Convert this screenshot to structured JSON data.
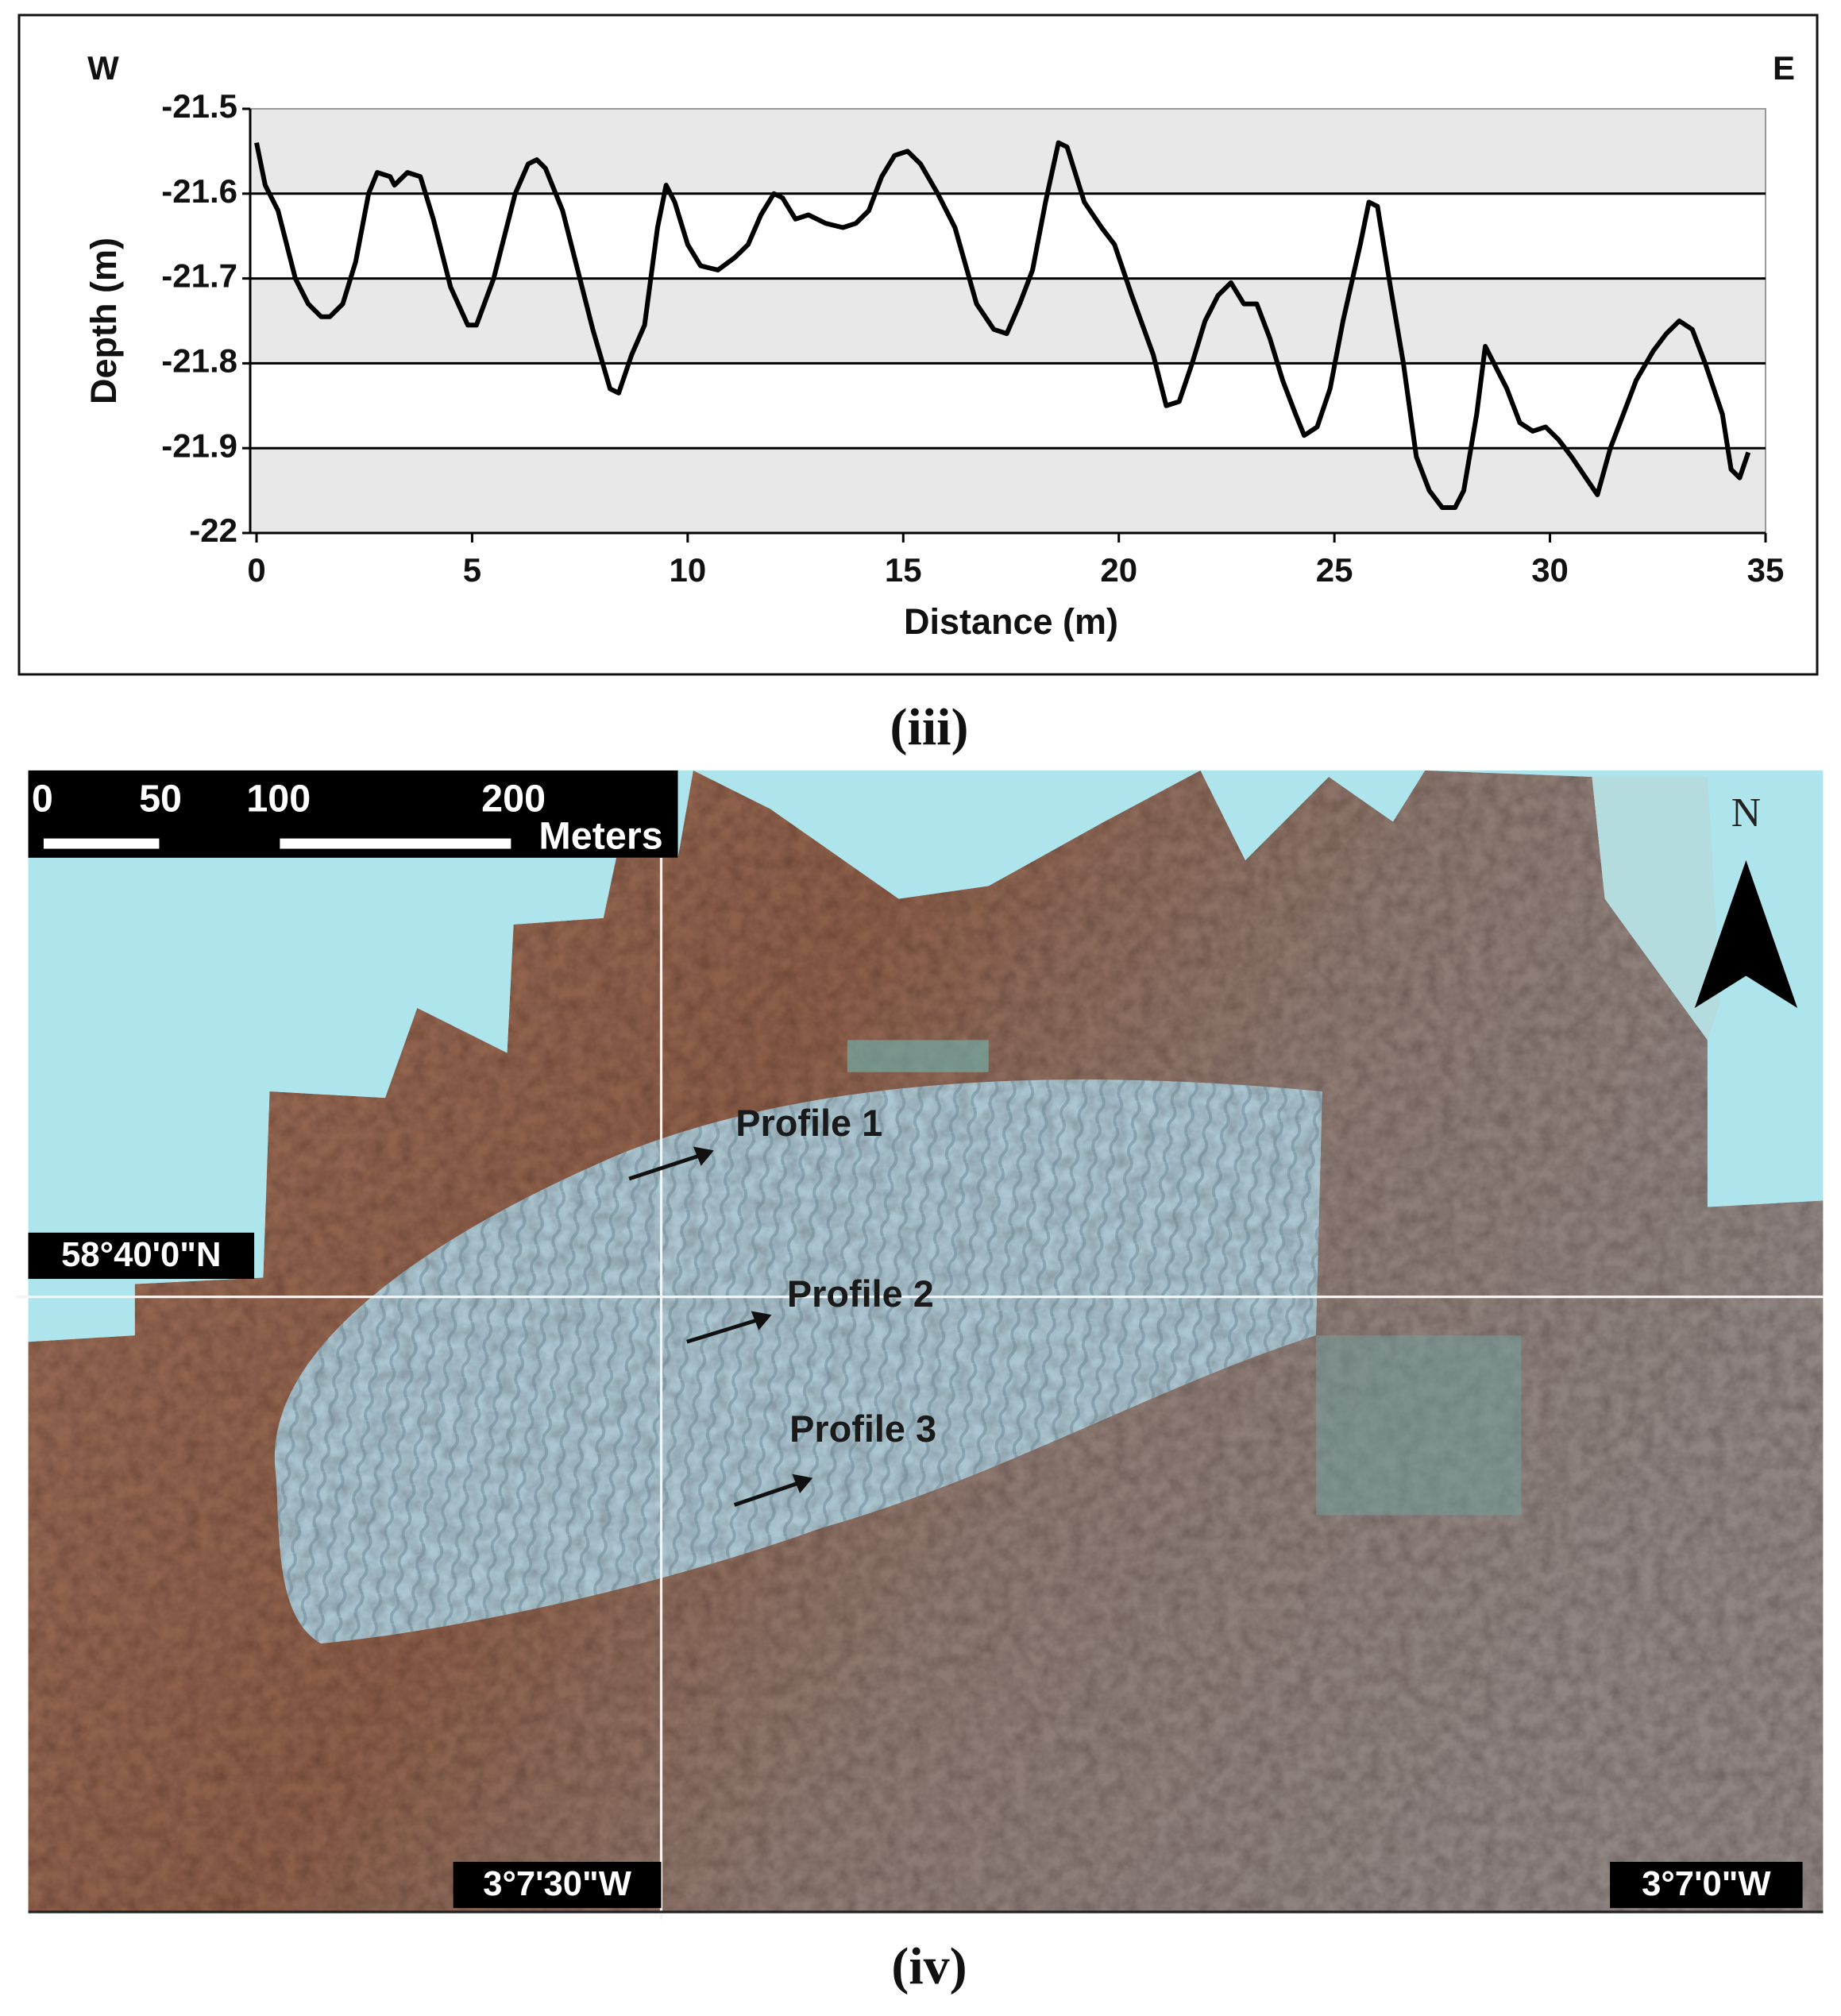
{
  "chart_data": {
    "type": "line",
    "xlabel": "Distance (m)",
    "ylabel": "Depth (m)",
    "annotations": [
      "W",
      "E"
    ],
    "caption": "(iii)",
    "x": [
      0,
      0.2,
      0.5,
      0.9,
      1.2,
      1.5,
      1.7,
      2.0,
      2.3,
      2.6,
      2.8,
      3.1,
      3.2,
      3.5,
      3.8,
      4.1,
      4.5,
      4.9,
      5.1,
      5.5,
      6.0,
      6.3,
      6.5,
      6.7,
      7.1,
      7.5,
      7.8,
      8.2,
      8.4,
      8.7,
      9.0,
      9.3,
      9.5,
      9.7,
      10.0,
      10.3,
      10.7,
      11.1,
      11.4,
      11.7,
      12.0,
      12.2,
      12.5,
      12.8,
      13.2,
      13.6,
      13.9,
      14.2,
      14.5,
      14.8,
      15.1,
      15.4,
      15.8,
      16.2,
      16.7,
      17.1,
      17.4,
      17.7,
      18.0,
      18.3,
      18.6,
      18.8,
      19.2,
      19.6,
      19.9,
      20.3,
      20.8,
      21.1,
      21.4,
      21.7,
      22.0,
      22.3,
      22.6,
      22.9,
      23.2,
      23.5,
      23.8,
      24.1,
      24.3,
      24.6,
      24.9,
      25.2,
      25.6,
      25.8,
      26.0,
      26.3,
      26.6,
      26.9,
      27.2,
      27.5,
      27.8,
      28.0,
      28.3,
      28.5,
      28.7,
      29.0,
      29.3,
      29.6,
      29.9,
      30.2,
      30.5,
      30.9,
      31.1,
      31.4,
      31.7,
      32.0,
      32.4,
      32.7,
      33.0,
      33.3,
      33.6,
      34.0,
      34.2,
      34.4,
      34.6
    ],
    "series": [
      {
        "color": "#000000",
        "values": [
          -21.54,
          -21.59,
          -21.62,
          -21.7,
          -21.73,
          -21.745,
          -21.745,
          -21.73,
          -21.68,
          -21.6,
          -21.575,
          -21.58,
          -21.59,
          -21.575,
          -21.58,
          -21.63,
          -21.71,
          -21.755,
          -21.755,
          -21.7,
          -21.6,
          -21.565,
          -21.56,
          -21.57,
          -21.62,
          -21.7,
          -21.76,
          -21.83,
          -21.835,
          -21.79,
          -21.755,
          -21.64,
          -21.59,
          -21.61,
          -21.66,
          -21.685,
          -21.69,
          -21.675,
          -21.66,
          -21.625,
          -21.6,
          -21.605,
          -21.63,
          -21.625,
          -21.635,
          -21.64,
          -21.635,
          -21.62,
          -21.58,
          -21.555,
          -21.55,
          -21.565,
          -21.6,
          -21.64,
          -21.73,
          -21.76,
          -21.765,
          -21.73,
          -21.69,
          -21.61,
          -21.54,
          -21.545,
          -21.61,
          -21.64,
          -21.66,
          -21.72,
          -21.79,
          -21.85,
          -21.845,
          -21.8,
          -21.75,
          -21.72,
          -21.705,
          -21.73,
          -21.73,
          -21.77,
          -21.82,
          -21.86,
          -21.885,
          -21.875,
          -21.83,
          -21.75,
          -21.66,
          -21.61,
          -21.615,
          -21.71,
          -21.8,
          -21.91,
          -21.95,
          -21.97,
          -21.97,
          -21.95,
          -21.86,
          -21.78,
          -21.8,
          -21.83,
          -21.87,
          -21.88,
          -21.875,
          -21.89,
          -21.91,
          -21.94,
          -21.955,
          -21.9,
          -21.86,
          -21.82,
          -21.785,
          -21.765,
          -21.75,
          -21.76,
          -21.8,
          -21.86,
          -21.925,
          -21.935,
          -21.905
        ]
      }
    ],
    "xlim": [
      0,
      35
    ],
    "ylim": [
      -22,
      -21.5
    ],
    "xticks": [
      0,
      5,
      10,
      15,
      20,
      25,
      30,
      35
    ],
    "yticks": [
      -22,
      -21.9,
      -21.8,
      -21.7,
      -21.6,
      -21.5
    ],
    "grid": true
  },
  "map": {
    "caption": "(iv)",
    "scale_bar": {
      "labels": [
        "0",
        "50",
        "100",
        "200"
      ],
      "unit": "Meters"
    },
    "north": "N",
    "latitude": "58°40'0\"N",
    "longitudes": [
      "3°7'30\"W",
      "3°7'0\"W"
    ],
    "profiles": [
      "Profile 1",
      "Profile 2",
      "Profile 3"
    ]
  }
}
